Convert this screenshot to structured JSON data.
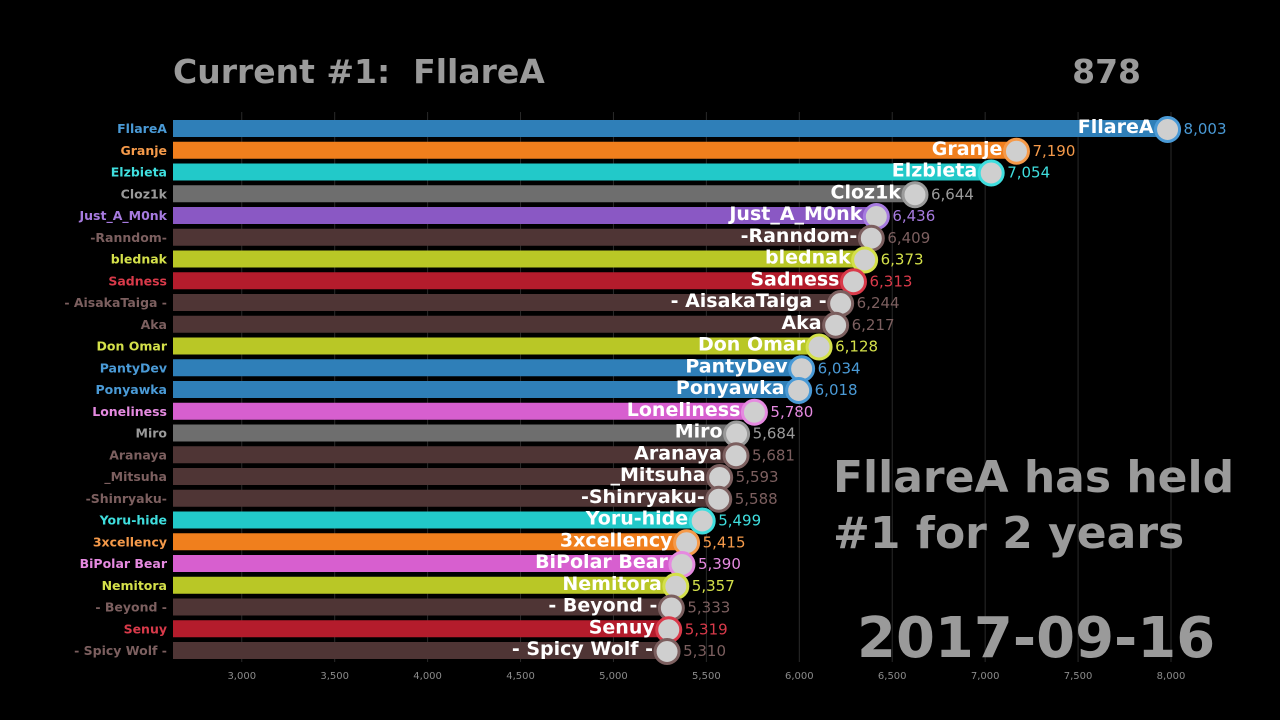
{
  "header": {
    "title": "Current #1:  FllareA",
    "counter": "878"
  },
  "side_note": {
    "line1": "FllareA has held",
    "line2": "#1 for 2 years"
  },
  "date": "2017-09-16",
  "chart_data": {
    "type": "bar",
    "orientation": "horizontal",
    "categories": [
      "FllareA",
      "Granje",
      "Elzbieta",
      "Cloz1k",
      "Just_A_M0nk",
      "-Ranndom-",
      "blednak",
      "Sadness",
      "- AisakaTaiga -",
      "Aka",
      "Don Omar",
      "PantyDev",
      "Ponyawka",
      "Loneliness",
      "Miro",
      "Aranaya",
      "_Mitsuha",
      "-Shinryaku-",
      "Yoru-hide",
      "3xcellency",
      "BiPolar Bear",
      "Nemitora",
      "- Beyond -",
      "Senuy",
      "- Spicy Wolf -"
    ],
    "values": [
      8003,
      7190,
      7054,
      6644,
      6436,
      6409,
      6373,
      6313,
      6244,
      6217,
      6128,
      6034,
      6018,
      5780,
      5684,
      5681,
      5593,
      5588,
      5499,
      5415,
      5390,
      5357,
      5333,
      5319,
      5310
    ],
    "value_labels": [
      "8,003",
      "7,190",
      "7,054",
      "6,644",
      "6,436",
      "6,409",
      "6,373",
      "6,313",
      "6,244",
      "6,217",
      "6,128",
      "6,034",
      "6,018",
      "5,780",
      "5,684",
      "5,681",
      "5,593",
      "5,588",
      "5,499",
      "5,415",
      "5,390",
      "5,357",
      "5,333",
      "5,319",
      "5,310"
    ],
    "colors": [
      "#2f7fb8",
      "#f07f1d",
      "#22c9c9",
      "#6e6e6e",
      "#8a58c4",
      "#4f3535",
      "#b9c726",
      "#b41c2c",
      "#4f3535",
      "#4f3535",
      "#b9c726",
      "#2f7fb8",
      "#2f7fb8",
      "#d75fcf",
      "#6e6e6e",
      "#4f3535",
      "#4f3535",
      "#4f3535",
      "#22c9c9",
      "#f07f1d",
      "#d75fcf",
      "#b9c726",
      "#4f3535",
      "#b41c2c",
      "#4f3535"
    ],
    "label_colors": [
      "#4a9ad6",
      "#f59a4a",
      "#3fdede",
      "#9a9a9a",
      "#a77be0",
      "#7c5f5f",
      "#d4e04a",
      "#d93a4a",
      "#7c5f5f",
      "#7c5f5f",
      "#d4e04a",
      "#4a9ad6",
      "#4a9ad6",
      "#e58ae0",
      "#9a9a9a",
      "#7c5f5f",
      "#7c5f5f",
      "#7c5f5f",
      "#3fdede",
      "#f59a4a",
      "#e58ae0",
      "#d4e04a",
      "#7c5f5f",
      "#d93a4a",
      "#7c5f5f"
    ],
    "xlim": [
      2630,
      8000
    ],
    "xticks": [
      3000,
      3500,
      4000,
      4500,
      5000,
      5500,
      6000,
      6500,
      7000,
      7500,
      8000
    ],
    "xtick_labels": [
      "3,000",
      "3,500",
      "4,000",
      "4,500",
      "5,000",
      "5,500",
      "6,000",
      "6,500",
      "7,000",
      "7,500",
      "8,000"
    ],
    "grid": true,
    "icon": "avatar-icon"
  }
}
